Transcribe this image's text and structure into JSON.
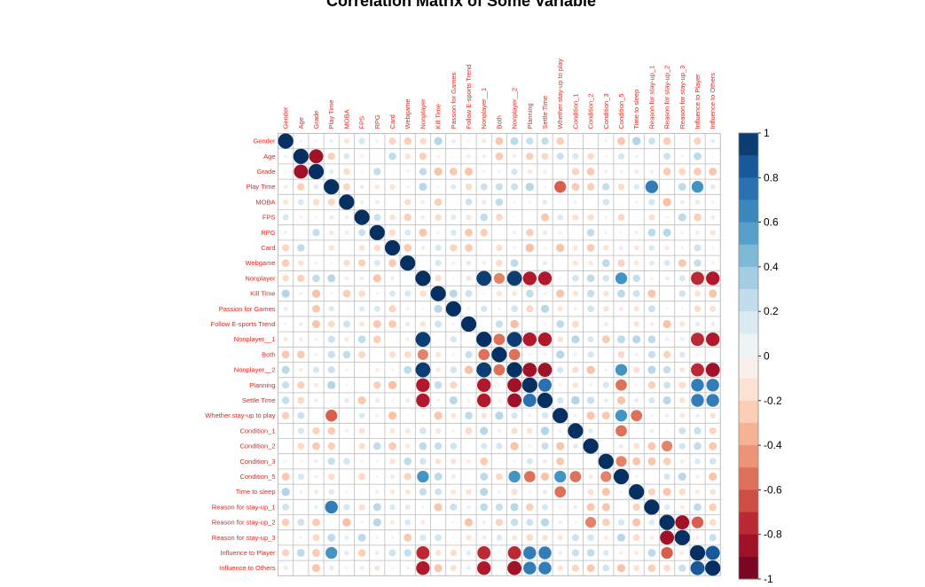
{
  "chart_data": {
    "type": "heatmap",
    "subtype": "correlation-matrix-circles",
    "title": "Correlation Matrix of Some Variable",
    "variables": [
      "Gender",
      "Age",
      "Grade",
      "Play Time",
      "MOBA",
      "FPS",
      "RPG",
      "Card",
      "Webgame",
      "Nonplayer",
      "Kill Time",
      "Passion for Games",
      "Follow E-sports Trend",
      "Nonplayer__1",
      "Both",
      "Nonplayer__2",
      "Planning",
      "Settle Time",
      "Whether stay-up to play",
      "Condition_1",
      "Condition_2",
      "Condition_3",
      "Condition_5",
      "Time to sleep",
      "Reason for stay-up_1",
      "Reason for stay-up_2",
      "Reason for stay-up_3",
      "Influence to Player",
      "Influence to Others"
    ],
    "known_values": [
      {
        "row": "Age",
        "col": "Grade",
        "value": -0.85
      },
      {
        "row": "Play Time",
        "col": "Whether stay-up to play",
        "value": -0.6
      },
      {
        "row": "Play Time",
        "col": "Reason for stay-up_1",
        "value": 0.7
      },
      {
        "row": "Play Time",
        "col": "Influence to Player",
        "value": 0.6
      },
      {
        "row": "Nonplayer",
        "col": "Nonplayer__1",
        "value": 0.95
      },
      {
        "row": "Nonplayer",
        "col": "Nonplayer__2",
        "value": 0.95
      },
      {
        "row": "Nonplayer",
        "col": "Both",
        "value": -0.5
      },
      {
        "row": "Nonplayer",
        "col": "Planning",
        "value": -0.8
      },
      {
        "row": "Nonplayer",
        "col": "Settle Time",
        "value": -0.8
      },
      {
        "row": "Nonplayer",
        "col": "Condition_5",
        "value": 0.6
      },
      {
        "row": "Nonplayer",
        "col": "Influence to Player",
        "value": -0.75
      },
      {
        "row": "Nonplayer",
        "col": "Influence to Others",
        "value": -0.8
      },
      {
        "row": "Nonplayer__1",
        "col": "Both",
        "value": -0.55
      },
      {
        "row": "Nonplayer__1",
        "col": "Nonplayer__2",
        "value": 0.95
      },
      {
        "row": "Nonplayer__1",
        "col": "Planning",
        "value": -0.8
      },
      {
        "row": "Nonplayer__1",
        "col": "Settle Time",
        "value": -0.8
      },
      {
        "row": "Nonplayer__1",
        "col": "Influence to Player",
        "value": -0.75
      },
      {
        "row": "Nonplayer__1",
        "col": "Influence to Others",
        "value": -0.8
      },
      {
        "row": "Both",
        "col": "Nonplayer__2",
        "value": -0.55
      },
      {
        "row": "Nonplayer__2",
        "col": "Planning",
        "value": -0.85
      },
      {
        "row": "Nonplayer__2",
        "col": "Settle Time",
        "value": -0.85
      },
      {
        "row": "Nonplayer__2",
        "col": "Condition_5",
        "value": 0.6
      },
      {
        "row": "Nonplayer__2",
        "col": "Influence to Player",
        "value": -0.75
      },
      {
        "row": "Nonplayer__2",
        "col": "Influence to Others",
        "value": -0.85
      },
      {
        "row": "Planning",
        "col": "Settle Time",
        "value": 0.75
      },
      {
        "row": "Planning",
        "col": "Condition_5",
        "value": -0.55
      },
      {
        "row": "Planning",
        "col": "Influence to Player",
        "value": 0.7
      },
      {
        "row": "Planning",
        "col": "Influence to Others",
        "value": 0.7
      },
      {
        "row": "Settle Time",
        "col": "Influence to Player",
        "value": 0.7
      },
      {
        "row": "Settle Time",
        "col": "Influence to Others",
        "value": 0.7
      },
      {
        "row": "Whether stay-up to play",
        "col": "Condition_5",
        "value": 0.6
      },
      {
        "row": "Whether stay-up to play",
        "col": "Time to sleep",
        "value": -0.55
      },
      {
        "row": "Condition_1",
        "col": "Condition_5",
        "value": -0.55
      },
      {
        "row": "Condition_2",
        "col": "Reason for stay-up_2",
        "value": -0.5
      },
      {
        "row": "Condition_3",
        "col": "Condition_5",
        "value": -0.5
      },
      {
        "row": "Reason for stay-up_2",
        "col": "Reason for stay-up_3",
        "value": -0.85
      },
      {
        "row": "Reason for stay-up_2",
        "col": "Influence to Player",
        "value": -0.6
      },
      {
        "row": "Influence to Player",
        "col": "Influence to Others",
        "value": 0.85
      }
    ],
    "legend": {
      "ticks": [
        "1",
        "0.8",
        "0.6",
        "0.4",
        "0.2",
        "0",
        "-0.2",
        "-0.4",
        "-0.6",
        "-0.8",
        "-1"
      ],
      "range": [
        -1,
        1
      ],
      "placement": "right"
    },
    "colors": {
      "palette": [
        "#67001f",
        "#b2182b",
        "#d6604d",
        "#f4a582",
        "#fddbc7",
        "#f7f7f7",
        "#d1e5f0",
        "#92c5de",
        "#4393c3",
        "#2166ac",
        "#053061"
      ],
      "label": "#e8231c",
      "grid": "#bebebe"
    }
  }
}
